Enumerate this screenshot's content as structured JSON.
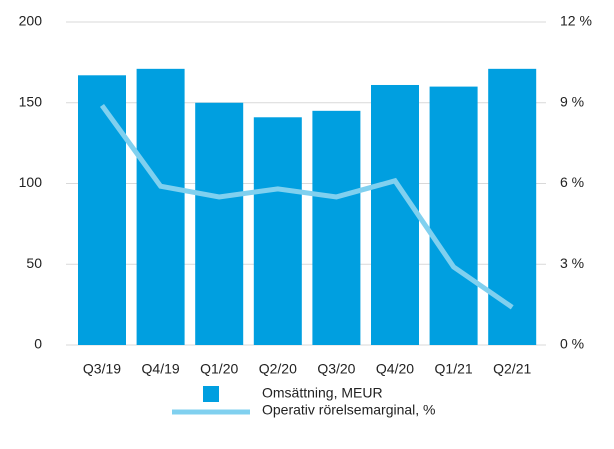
{
  "chart_data": {
    "type": "bar",
    "categories": [
      "Q3/19",
      "Q4/19",
      "Q1/20",
      "Q2/20",
      "Q3/20",
      "Q4/20",
      "Q1/21",
      "Q2/21"
    ],
    "series": [
      {
        "name": "Omsättning, MEUR",
        "type": "bar",
        "color": "#009fe0",
        "values": [
          167,
          171,
          150,
          141,
          145,
          161,
          160,
          171
        ]
      },
      {
        "name": "Operativ rörelsemarginal, %",
        "type": "line",
        "axis": "y2",
        "color": "#80d0ef",
        "values": [
          8.9,
          5.9,
          5.5,
          5.8,
          5.5,
          6.1,
          2.9,
          1.4
        ]
      }
    ],
    "ylim": [
      0,
      200
    ],
    "yticks": [
      0,
      50,
      100,
      150,
      200
    ],
    "y2lim": [
      0,
      12
    ],
    "y2ticks": [
      {
        "value": 0,
        "label": "0 %"
      },
      {
        "value": 3,
        "label": "3 %"
      },
      {
        "value": 6,
        "label": "6 %"
      },
      {
        "value": 9,
        "label": "9 %"
      },
      {
        "value": 12,
        "label": "12 %"
      }
    ],
    "grid": true
  }
}
